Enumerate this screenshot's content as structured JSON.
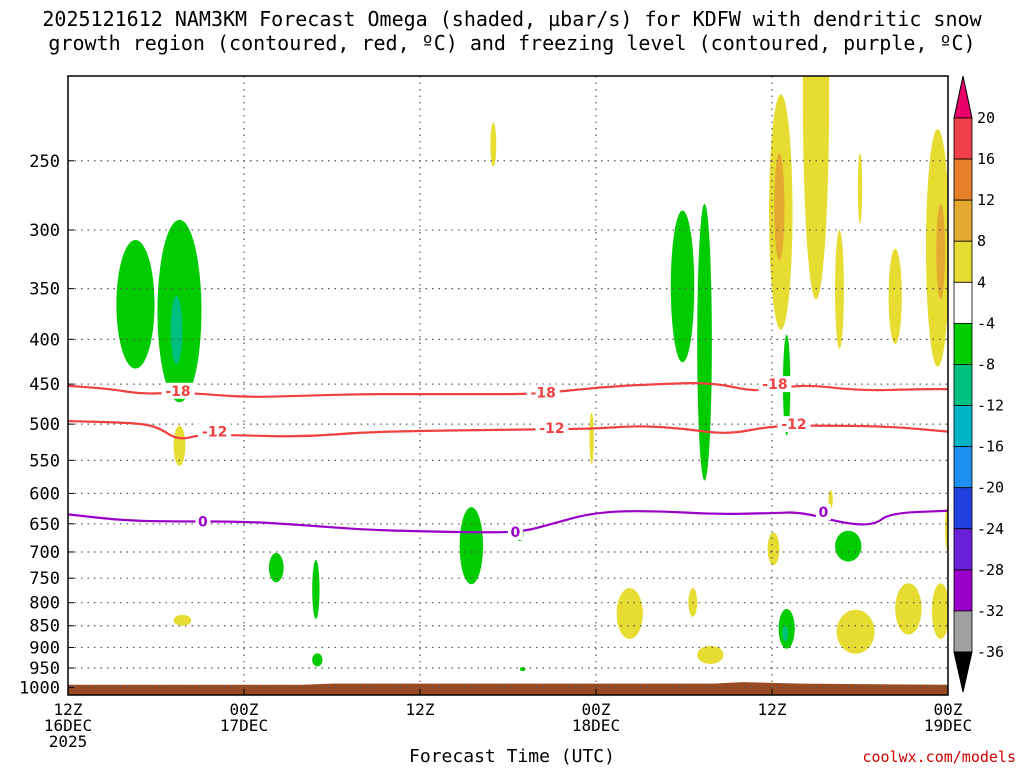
{
  "chart_data": {
    "type": "heatmap",
    "title_line1": "2025121612 NAM3KM Forecast Omega (shaded, µbar/s) for KDFW with dendritic snow",
    "title_line2": "growth region (contoured, red, ºC) and freezing level (contoured, purple, ºC)",
    "xlabel": "Forecast Time (UTC)",
    "credit": "coolwx.com/models",
    "x_ticks": [
      {
        "hour": 0,
        "line1": "12Z",
        "line2": "16DEC",
        "line3": "2025"
      },
      {
        "hour": 12,
        "line1": "00Z",
        "line2": "17DEC",
        "line3": ""
      },
      {
        "hour": 24,
        "line1": "12Z",
        "line2": "",
        "line3": ""
      },
      {
        "hour": 36,
        "line1": "00Z",
        "line2": "18DEC",
        "line3": ""
      },
      {
        "hour": 48,
        "line1": "12Z",
        "line2": "",
        "line3": ""
      },
      {
        "hour": 60,
        "line1": "00Z",
        "line2": "19DEC",
        "line3": ""
      }
    ],
    "x_range_hours": [
      0,
      60
    ],
    "y_pressure_levels": [
      250,
      300,
      350,
      400,
      450,
      500,
      550,
      600,
      650,
      700,
      750,
      800,
      850,
      900,
      950,
      1000
    ],
    "y_range_mb": [
      200,
      1020
    ],
    "colorbar": {
      "labels": [
        "20",
        "16",
        "12",
        "8",
        "4",
        "-4",
        "-8",
        "-12",
        "-16",
        "-20",
        "-24",
        "-28",
        "-32",
        "-36"
      ],
      "bands": [
        {
          "lo": 16,
          "hi": 20,
          "color": "#f0404a"
        },
        {
          "lo": 12,
          "hi": 16,
          "color": "#e8802a"
        },
        {
          "lo": 8,
          "hi": 12,
          "color": "#e4aa30"
        },
        {
          "lo": 4,
          "hi": 8,
          "color": "#e6dc32"
        },
        {
          "lo": -4,
          "hi": 4,
          "color": "#ffffff"
        },
        {
          "lo": -8,
          "hi": -4,
          "color": "#00cc00"
        },
        {
          "lo": -12,
          "hi": -8,
          "color": "#00c080"
        },
        {
          "lo": -16,
          "hi": -12,
          "color": "#00b4c8"
        },
        {
          "lo": -20,
          "hi": -16,
          "color": "#1e90f0"
        },
        {
          "lo": -24,
          "hi": -20,
          "color": "#2040e0"
        },
        {
          "lo": -28,
          "hi": -24,
          "color": "#6a20d8"
        },
        {
          "lo": -32,
          "hi": -28,
          "color": "#9a00c8"
        },
        {
          "lo": -36,
          "hi": -32,
          "color": "#a0a0a0"
        }
      ],
      "top_arrow_color": "#e8006a",
      "bottom_arrow_color": "#000000"
    },
    "contours": [
      {
        "name": "-18C dendritic top",
        "color": "#f04040",
        "points": [
          [
            0,
            452
          ],
          [
            3,
            456
          ],
          [
            5,
            462
          ],
          [
            8,
            460
          ],
          [
            12,
            466
          ],
          [
            16,
            464
          ],
          [
            20,
            462
          ],
          [
            24,
            462
          ],
          [
            28,
            462
          ],
          [
            32,
            462
          ],
          [
            36,
            454
          ],
          [
            40,
            450
          ],
          [
            44,
            448
          ],
          [
            47,
            460
          ],
          [
            50,
            450
          ],
          [
            54,
            458
          ],
          [
            58,
            456
          ],
          [
            60,
            456
          ]
        ],
        "labels": [
          {
            "hour": 7.5,
            "mb": 458,
            "text": "-18"
          },
          {
            "hour": 32.4,
            "mb": 460,
            "text": "-18"
          },
          {
            "hour": 48.2,
            "mb": 450,
            "text": "-18"
          }
        ]
      },
      {
        "name": "-12C dendritic bottom",
        "color": "#f04040",
        "points": [
          [
            0,
            496
          ],
          [
            4,
            498
          ],
          [
            6,
            502
          ],
          [
            7.5,
            522
          ],
          [
            9,
            514
          ],
          [
            12,
            515
          ],
          [
            16,
            517
          ],
          [
            20,
            511
          ],
          [
            24,
            509
          ],
          [
            28,
            508
          ],
          [
            32,
            507
          ],
          [
            36,
            506
          ],
          [
            39,
            502
          ],
          [
            42,
            506
          ],
          [
            45,
            514
          ],
          [
            48,
            502
          ],
          [
            52,
            502
          ],
          [
            56,
            503
          ],
          [
            60,
            510
          ]
        ],
        "labels": [
          {
            "hour": 10,
            "mb": 510,
            "text": "-12"
          },
          {
            "hour": 33,
            "mb": 505,
            "text": "-12"
          },
          {
            "hour": 49.5,
            "mb": 500,
            "text": "-12"
          }
        ]
      },
      {
        "name": "0C freezing level",
        "color": "#9a00c8",
        "points": [
          [
            0,
            634
          ],
          [
            4,
            645
          ],
          [
            8,
            646
          ],
          [
            12,
            646
          ],
          [
            16,
            652
          ],
          [
            20,
            660
          ],
          [
            24,
            663
          ],
          [
            28,
            665
          ],
          [
            31,
            664
          ],
          [
            33,
            650
          ],
          [
            36,
            630
          ],
          [
            40,
            628
          ],
          [
            44,
            634
          ],
          [
            48,
            632
          ],
          [
            50,
            630
          ],
          [
            53,
            650
          ],
          [
            55,
            652
          ],
          [
            56,
            632
          ],
          [
            60,
            628
          ]
        ],
        "labels": [
          {
            "hour": 9.2,
            "mb": 646,
            "text": "0"
          },
          {
            "hour": 30.5,
            "mb": 664,
            "text": "0"
          },
          {
            "hour": 51.5,
            "mb": 630,
            "text": "0"
          }
        ]
      }
    ],
    "shaded_features": [
      {
        "omega": -6,
        "color": "#00cc00",
        "center_hour": 4.6,
        "center_mb": 370,
        "half_width_hours": 1.3,
        "half_depth_mb": 62
      },
      {
        "omega": -6,
        "color": "#00cc00",
        "center_hour": 7.6,
        "center_mb": 382,
        "half_width_hours": 1.5,
        "half_depth_mb": 90
      },
      {
        "omega": -10,
        "color": "#00c080",
        "center_hour": 7.4,
        "center_mb": 392,
        "half_width_hours": 0.4,
        "half_depth_mb": 35
      },
      {
        "omega": 6,
        "color": "#e6dc32",
        "center_hour": 7.6,
        "center_mb": 530,
        "half_width_hours": 0.4,
        "half_depth_mb": 28
      },
      {
        "omega": 6,
        "color": "#e6dc32",
        "center_hour": 7.8,
        "center_mb": 838,
        "half_width_hours": 0.6,
        "half_depth_mb": 12
      },
      {
        "omega": -6,
        "color": "#00cc00",
        "center_hour": 14.2,
        "center_mb": 730,
        "half_width_hours": 0.5,
        "half_depth_mb": 28
      },
      {
        "omega": -6,
        "color": "#00cc00",
        "center_hour": 16.9,
        "center_mb": 775,
        "half_width_hours": 0.25,
        "half_depth_mb": 60
      },
      {
        "omega": -6,
        "color": "#00cc00",
        "center_hour": 17.0,
        "center_mb": 930,
        "half_width_hours": 0.35,
        "half_depth_mb": 16
      },
      {
        "omega": 6,
        "color": "#e6dc32",
        "center_hour": 29.0,
        "center_mb": 240,
        "half_width_hours": 0.2,
        "half_depth_mb": 14
      },
      {
        "omega": -6,
        "color": "#00cc00",
        "center_hour": 27.5,
        "center_mb": 692,
        "half_width_hours": 0.8,
        "half_depth_mb": 70
      },
      {
        "omega": -6,
        "color": "#00cc00",
        "center_hour": 30.8,
        "center_mb": 668,
        "half_width_hours": 0.25,
        "half_depth_mb": 12
      },
      {
        "omega": -6,
        "color": "#00cc00",
        "center_hour": 31.0,
        "center_mb": 953,
        "half_width_hours": 0.2,
        "half_depth_mb": 5
      },
      {
        "omega": 6,
        "color": "#e6dc32",
        "center_hour": 35.7,
        "center_mb": 520,
        "half_width_hours": 0.15,
        "half_depth_mb": 35
      },
      {
        "omega": -6,
        "color": "#00cc00",
        "center_hour": 41.9,
        "center_mb": 355,
        "half_width_hours": 0.8,
        "half_depth_mb": 70
      },
      {
        "omega": -6,
        "color": "#00cc00",
        "center_hour": 43.4,
        "center_mb": 430,
        "half_width_hours": 0.5,
        "half_depth_mb": 150
      },
      {
        "omega": 6,
        "color": "#e6dc32",
        "center_hour": 42.6,
        "center_mb": 800,
        "half_width_hours": 0.3,
        "half_depth_mb": 30
      },
      {
        "omega": 6,
        "color": "#e6dc32",
        "center_hour": 38.3,
        "center_mb": 825,
        "half_width_hours": 0.9,
        "half_depth_mb": 55
      },
      {
        "omega": 6,
        "color": "#e6dc32",
        "center_hour": 43.8,
        "center_mb": 918,
        "half_width_hours": 0.9,
        "half_depth_mb": 22
      },
      {
        "omega": 6,
        "color": "#e6dc32",
        "center_hour": 48.6,
        "center_mb": 300,
        "half_width_hours": 0.8,
        "half_depth_mb": 90
      },
      {
        "omega": 10,
        "color": "#e4aa30",
        "center_hour": 48.5,
        "center_mb": 285,
        "half_width_hours": 0.35,
        "half_depth_mb": 40
      },
      {
        "omega": 6,
        "color": "#e6dc32",
        "center_hour": 51.0,
        "center_mb": 240,
        "half_width_hours": 0.9,
        "half_depth_mb": 120
      },
      {
        "omega": 6,
        "color": "#e6dc32",
        "center_hour": 52.6,
        "center_mb": 355,
        "half_width_hours": 0.3,
        "half_depth_mb": 55
      },
      {
        "omega": 6,
        "color": "#e6dc32",
        "center_hour": 56.4,
        "center_mb": 360,
        "half_width_hours": 0.45,
        "half_depth_mb": 45
      },
      {
        "omega": 6,
        "color": "#e6dc32",
        "center_hour": 59.3,
        "center_mb": 330,
        "half_width_hours": 0.8,
        "half_depth_mb": 100
      },
      {
        "omega": 10,
        "color": "#e4aa30",
        "center_hour": 59.5,
        "center_mb": 320,
        "half_width_hours": 0.3,
        "half_depth_mb": 40
      },
      {
        "omega": 6,
        "color": "#e6dc32",
        "center_hour": 54.0,
        "center_mb": 270,
        "half_width_hours": 0.15,
        "half_depth_mb": 25
      },
      {
        "omega": -6,
        "color": "#00cc00",
        "center_hour": 49.0,
        "center_mb": 455,
        "half_width_hours": 0.25,
        "half_depth_mb": 60
      },
      {
        "omega": -6,
        "color": "#00cc00",
        "center_hour": 49.0,
        "center_mb": 858,
        "half_width_hours": 0.55,
        "half_depth_mb": 45
      },
      {
        "omega": -10,
        "color": "#00c080",
        "center_hour": 48.9,
        "center_mb": 868,
        "half_width_hours": 0.2,
        "half_depth_mb": 18
      },
      {
        "omega": -6,
        "color": "#00cc00",
        "center_hour": 53.2,
        "center_mb": 690,
        "half_width_hours": 0.9,
        "half_depth_mb": 28
      },
      {
        "omega": 6,
        "color": "#e6dc32",
        "center_hour": 48.1,
        "center_mb": 695,
        "half_width_hours": 0.4,
        "half_depth_mb": 30
      },
      {
        "omega": 6,
        "color": "#e6dc32",
        "center_hour": 52.0,
        "center_mb": 610,
        "half_width_hours": 0.15,
        "half_depth_mb": 15
      },
      {
        "omega": 6,
        "color": "#e6dc32",
        "center_hour": 53.7,
        "center_mb": 865,
        "half_width_hours": 1.3,
        "half_depth_mb": 50
      },
      {
        "omega": 6,
        "color": "#e6dc32",
        "center_hour": 57.3,
        "center_mb": 815,
        "half_width_hours": 0.9,
        "half_depth_mb": 55
      },
      {
        "omega": 6,
        "color": "#e6dc32",
        "center_hour": 59.5,
        "center_mb": 820,
        "half_width_hours": 0.6,
        "half_depth_mb": 60
      },
      {
        "omega": 6,
        "color": "#e6dc32",
        "center_hour": 60.0,
        "center_mb": 660,
        "half_width_hours": 0.2,
        "half_depth_mb": 40
      }
    ],
    "terrain": {
      "color": "#9a4a22",
      "surface_mb": 993,
      "bottom_mb": 1020
    }
  }
}
